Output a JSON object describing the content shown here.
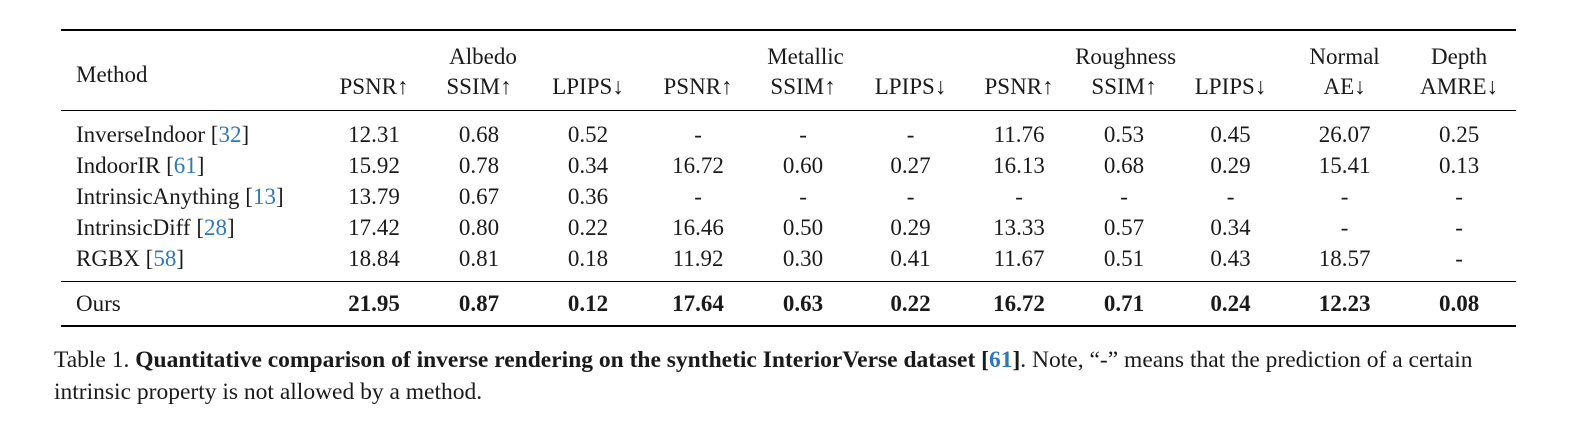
{
  "table": {
    "method_header": "Method",
    "groups": [
      {
        "label": "Albedo",
        "metrics": [
          "PSNR↑",
          "SSIM↑",
          "LPIPS↓"
        ]
      },
      {
        "label": "Metallic",
        "metrics": [
          "PSNR↑",
          "SSIM↑",
          "LPIPS↓"
        ]
      },
      {
        "label": "Roughness",
        "metrics": [
          "PSNR↑",
          "SSIM↑",
          "LPIPS↓"
        ]
      },
      {
        "label": "Normal",
        "metrics": [
          "AE↓"
        ]
      },
      {
        "label": "Depth",
        "metrics": [
          "AMRE↓"
        ]
      }
    ],
    "rows": [
      {
        "method": "InverseIndoor",
        "cite": "32",
        "values": [
          "12.31",
          "0.68",
          "0.52",
          "-",
          "-",
          "-",
          "11.76",
          "0.53",
          "0.45",
          "26.07",
          "0.25"
        ]
      },
      {
        "method": "IndoorIR",
        "cite": "61",
        "values": [
          "15.92",
          "0.78",
          "0.34",
          "16.72",
          "0.60",
          "0.27",
          "16.13",
          "0.68",
          "0.29",
          "15.41",
          "0.13"
        ]
      },
      {
        "method": "IntrinsicAnything",
        "cite": "13",
        "values": [
          "13.79",
          "0.67",
          "0.36",
          "-",
          "-",
          "-",
          "-",
          "-",
          "-",
          "-",
          "-"
        ]
      },
      {
        "method": "IntrinsicDiff",
        "cite": "28",
        "values": [
          "17.42",
          "0.80",
          "0.22",
          "16.46",
          "0.50",
          "0.29",
          "13.33",
          "0.57",
          "0.34",
          "-",
          "-"
        ]
      },
      {
        "method": "RGBX",
        "cite": "58",
        "values": [
          "18.84",
          "0.81",
          "0.18",
          "11.92",
          "0.30",
          "0.41",
          "11.67",
          "0.51",
          "0.43",
          "18.57",
          "-"
        ]
      }
    ],
    "ours": {
      "method": "Ours",
      "values": [
        "21.95",
        "0.87",
        "0.12",
        "17.64",
        "0.63",
        "0.22",
        "16.72",
        "0.71",
        "0.24",
        "12.23",
        "0.08"
      ]
    }
  },
  "caption": {
    "label": "Table 1.",
    "bold_text": "Quantitative comparison of inverse rendering on the synthetic InteriorVerse dataset [",
    "cite": "61",
    "bold_close": "]",
    "rest": ". Note, “-” means that the prediction of a certain intrinsic property is not allowed by a method."
  }
}
